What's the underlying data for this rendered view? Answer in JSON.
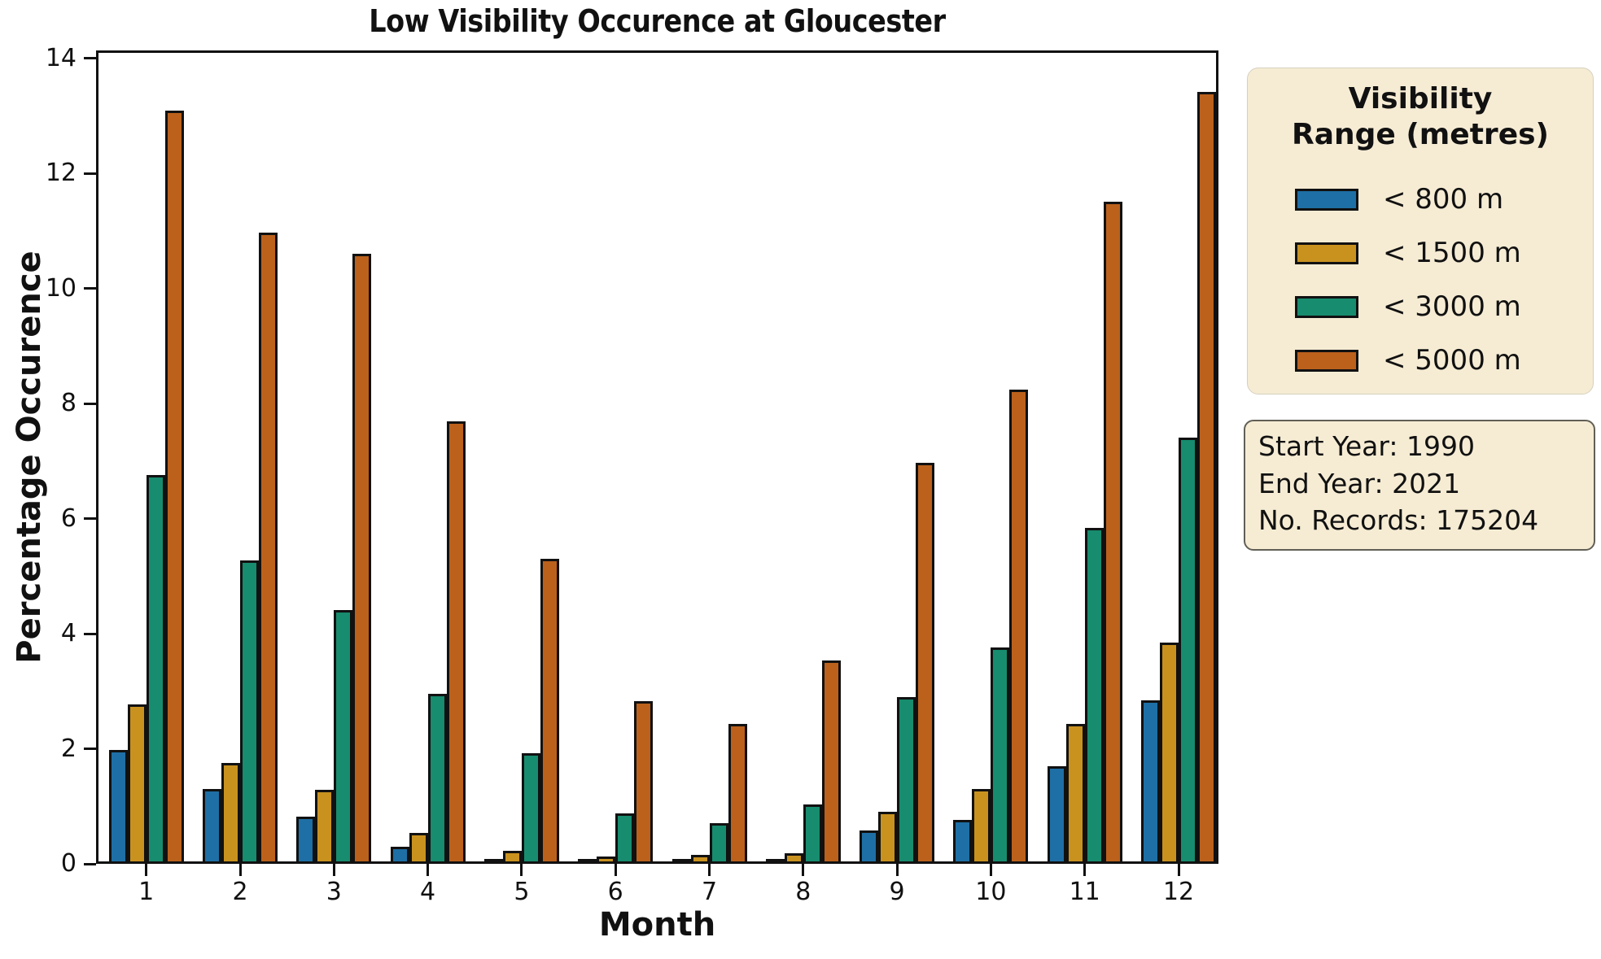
{
  "title": "Low Visibility Occurence at Gloucester",
  "axes": {
    "x_label": "Month",
    "y_label": "Percentage Occurence",
    "x_ticks": [
      "1",
      "2",
      "3",
      "4",
      "5",
      "6",
      "7",
      "8",
      "9",
      "10",
      "11",
      "12"
    ],
    "y_ticks": [
      "0",
      "2",
      "4",
      "6",
      "8",
      "10",
      "12",
      "14"
    ]
  },
  "legend": {
    "title_line1": "Visibility",
    "title_line2": "Range (metres)",
    "background_color": "#f6ecd4"
  },
  "info_box": {
    "background_color": "#f6ecd4",
    "lines": [
      "Start Year: 1990",
      "End Year: 2021",
      "No. Records: 175204"
    ]
  },
  "chart_data": {
    "type": "bar",
    "title": "Low Visibility Occurence at Gloucester",
    "xlabel": "Month",
    "ylabel": "Percentage Occurence",
    "categories": [
      1,
      2,
      3,
      4,
      5,
      6,
      7,
      8,
      9,
      10,
      11,
      12
    ],
    "series": [
      {
        "name": "< 800 m",
        "key": "lt-800m",
        "color": "#1e6fa5",
        "values": [
          1.98,
          1.3,
          0.82,
          0.3,
          0.04,
          0.07,
          0.04,
          0.05,
          0.58,
          0.76,
          1.7,
          2.84
        ]
      },
      {
        "name": "< 1500 m",
        "key": "lt-1500m",
        "color": "#c9921f",
        "values": [
          2.77,
          1.76,
          1.28,
          0.54,
          0.22,
          0.13,
          0.15,
          0.18,
          0.9,
          1.3,
          2.43,
          3.85
        ]
      },
      {
        "name": "< 3000 m",
        "key": "lt-3000m",
        "color": "#178c6e",
        "values": [
          6.76,
          5.27,
          4.41,
          2.95,
          1.92,
          0.87,
          0.71,
          1.03,
          2.9,
          3.76,
          5.84,
          7.41
        ]
      },
      {
        "name": "< 5000 m",
        "key": "lt-5000m",
        "color": "#bb611c",
        "values": [
          13.1,
          10.97,
          10.6,
          7.69,
          5.3,
          2.83,
          2.43,
          3.53,
          6.97,
          8.24,
          11.51,
          13.42
        ]
      }
    ],
    "ylim": [
      0,
      14.14
    ],
    "y_tick_step": 2,
    "grid": false,
    "bar_edge_color": "#111111",
    "legend_position": "outside-right"
  }
}
